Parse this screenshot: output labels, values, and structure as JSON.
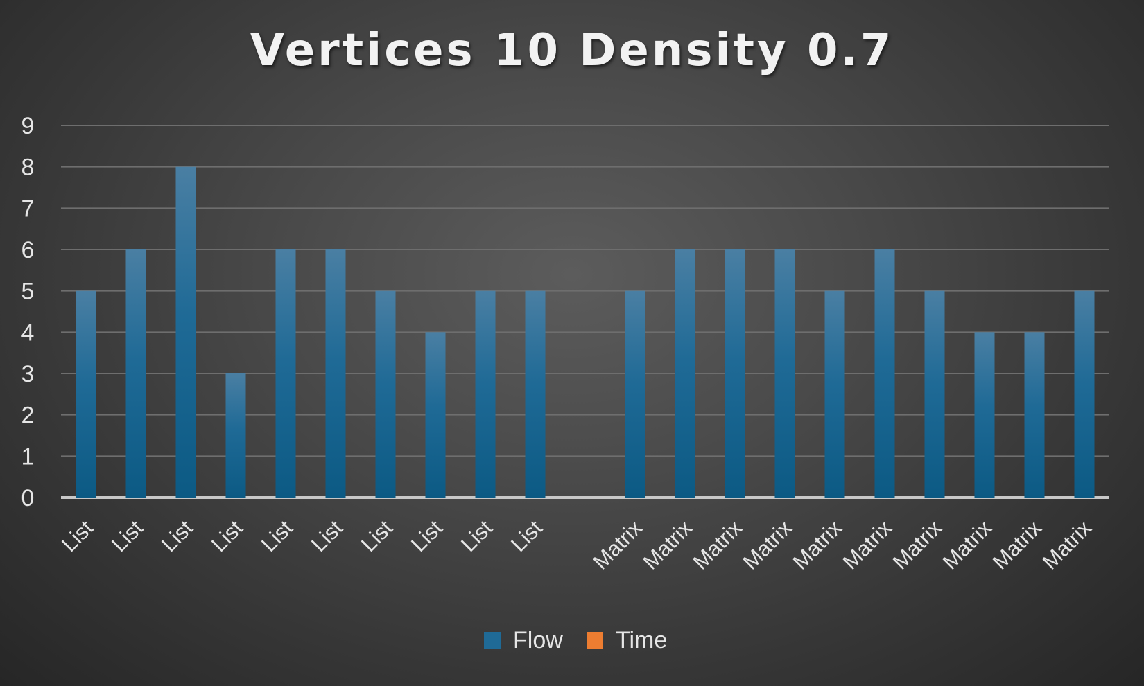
{
  "chart_data": {
    "type": "bar",
    "title": "Vertices 10 Density 0.7",
    "xlabel": "",
    "ylabel": "",
    "ylim": [
      0,
      9
    ],
    "yticks": [
      0,
      1,
      2,
      3,
      4,
      5,
      6,
      7,
      8,
      9
    ],
    "grid": true,
    "legend_position": "bottom",
    "categories": [
      "List",
      "List",
      "List",
      "List",
      "List",
      "List",
      "List",
      "List",
      "List",
      "List",
      "",
      "Matrix",
      "Matrix",
      "Matrix",
      "Matrix",
      "Matrix",
      "Matrix",
      "Matrix",
      "Matrix",
      "Matrix",
      "Matrix"
    ],
    "series": [
      {
        "name": "Flow",
        "color": "#1f6a96",
        "values": [
          5,
          6,
          8,
          3,
          6,
          6,
          5,
          4,
          5,
          5,
          null,
          5,
          6,
          6,
          6,
          5,
          6,
          5,
          4,
          4,
          5
        ]
      },
      {
        "name": "Time",
        "color": "#ed7d31",
        "values": [
          null,
          null,
          null,
          null,
          null,
          null,
          null,
          null,
          null,
          null,
          null,
          null,
          null,
          null,
          null,
          null,
          null,
          null,
          null,
          null,
          null
        ]
      }
    ]
  }
}
